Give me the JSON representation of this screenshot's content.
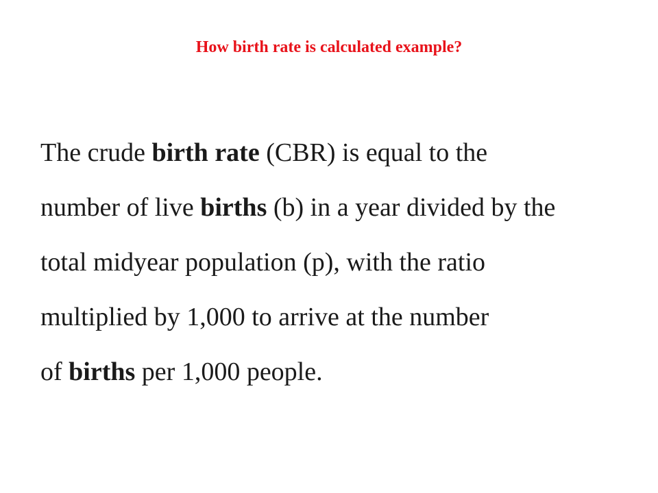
{
  "slide": {
    "title": "How birth rate is calculated example?",
    "lines": [
      [
        {
          "text": "The crude ",
          "bold": false
        },
        {
          "text": "birth rate",
          "bold": true
        },
        {
          "text": " (CBR) is equal to the",
          "bold": false
        }
      ],
      [
        {
          "text": "number of live ",
          "bold": false
        },
        {
          "text": "births",
          "bold": true
        },
        {
          "text": " (b) in a year divided by the",
          "bold": false
        }
      ],
      [
        {
          "text": "total midyear population (p), with the ratio",
          "bold": false
        }
      ],
      [
        {
          "text": "multiplied by 1,000 to arrive at the number",
          "bold": false
        }
      ],
      [
        {
          "text": "of ",
          "bold": false
        },
        {
          "text": "births",
          "bold": true
        },
        {
          "text": " per 1,000 people.",
          "bold": false
        }
      ]
    ]
  },
  "colors": {
    "title": "#e8121a",
    "text": "#1a1a1a",
    "background": "#ffffff"
  }
}
